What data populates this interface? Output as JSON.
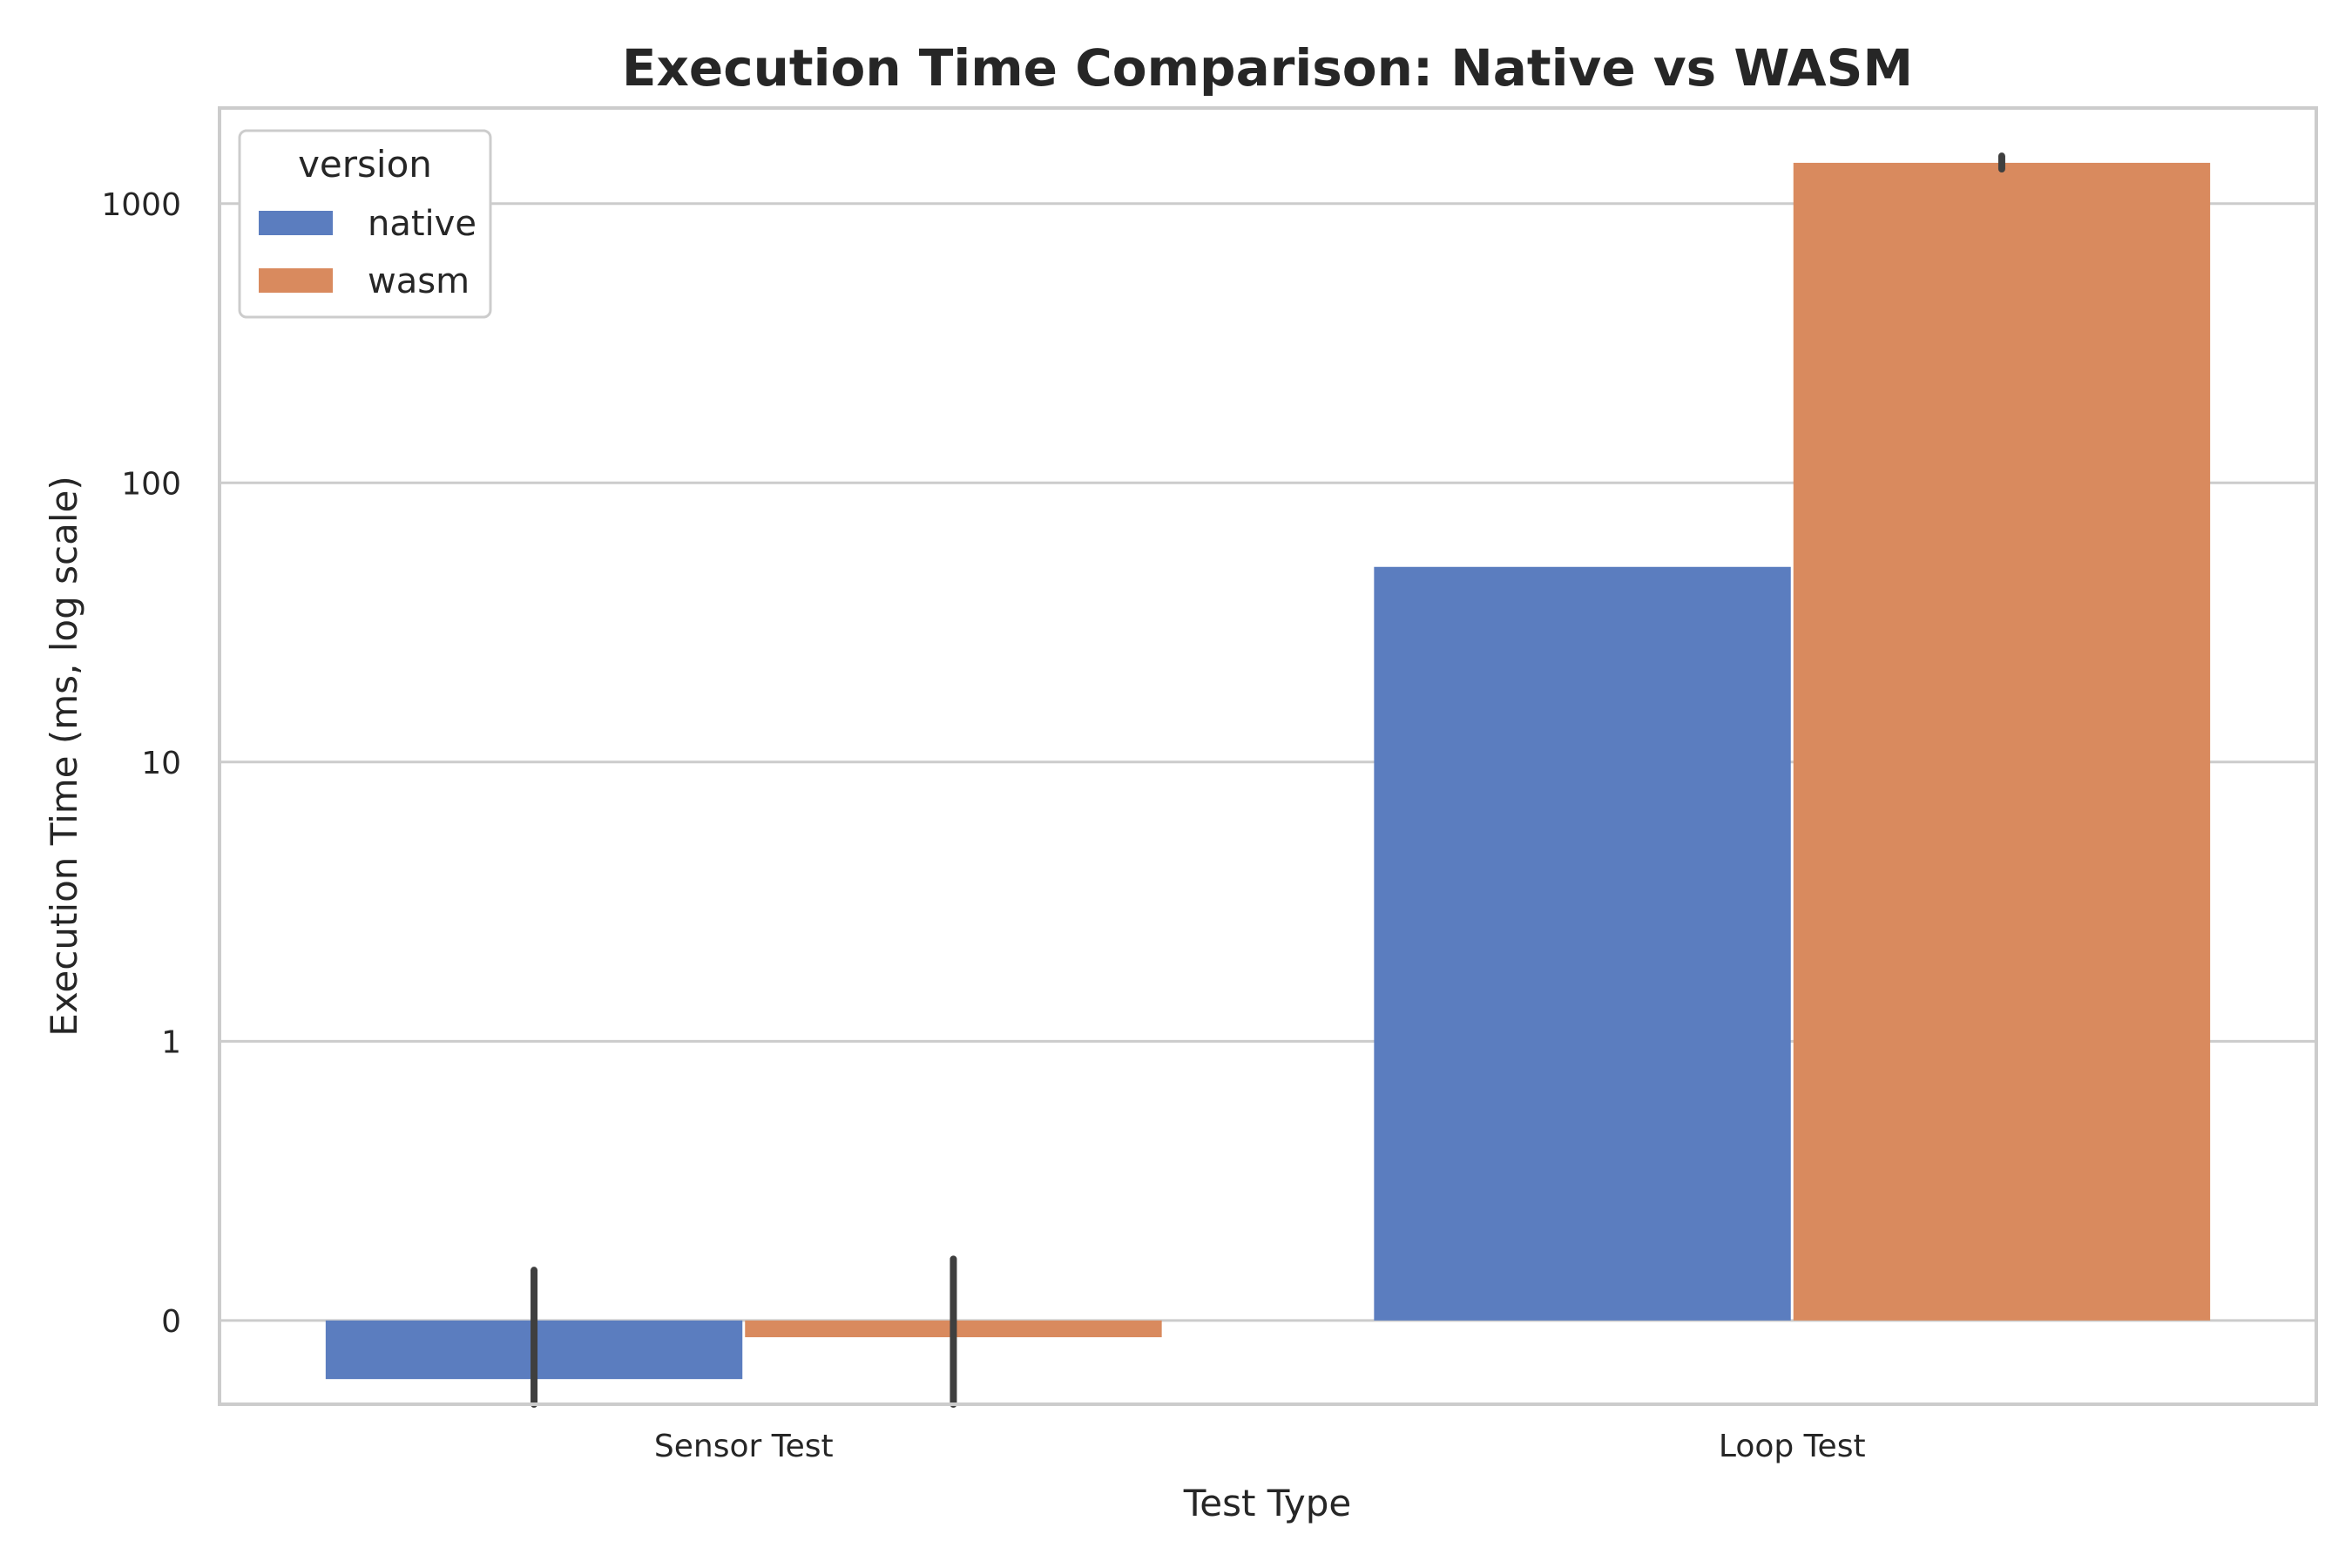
{
  "chart_data": {
    "type": "bar",
    "title": "Execution Time Comparison: Native vs WASM",
    "xlabel": "Test Type",
    "ylabel": "Execution Time (ms, log scale)",
    "yscale": "symlog",
    "ylim": [
      -0.3,
      2200
    ],
    "yticks": [
      0,
      1,
      10,
      100,
      1000
    ],
    "ytick_labels": [
      "0",
      "1",
      "10",
      "100",
      "1000"
    ],
    "grid": "y",
    "categories": [
      "Sensor Test",
      "Loop Test"
    ],
    "legend": {
      "title": "version",
      "position": "top-left"
    },
    "series": [
      {
        "name": "native",
        "color": "#5b7dbf",
        "values": [
          -0.21,
          50
        ],
        "error_low": [
          -0.3,
          null
        ],
        "error_high": [
          0.18,
          null
        ]
      },
      {
        "name": "wasm",
        "color": "#d98a5e",
        "values": [
          -0.06,
          1400
        ],
        "error_low": [
          -0.3,
          1330
        ],
        "error_high": [
          0.22,
          1480
        ]
      }
    ]
  }
}
